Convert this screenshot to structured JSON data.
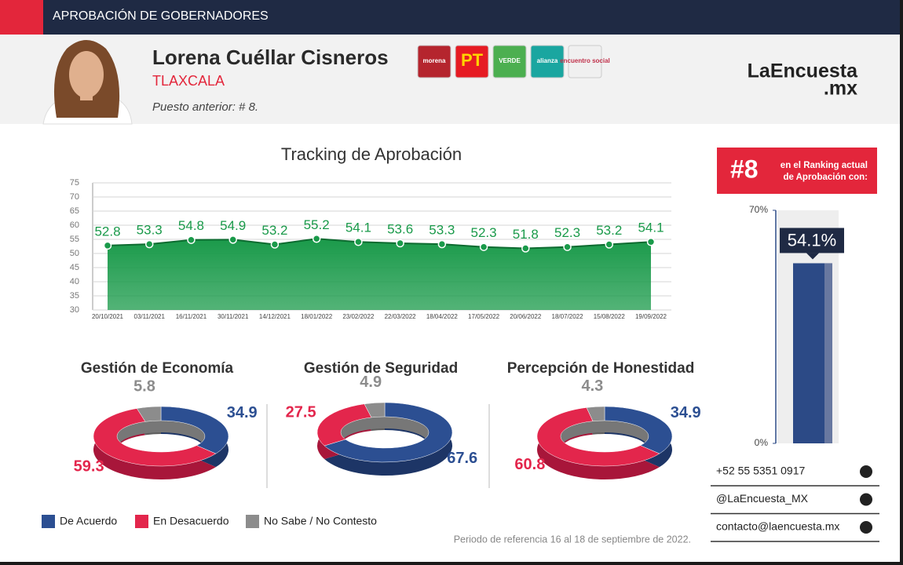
{
  "header": {
    "section_title": "APROBACIÓN DE GOBERNADORES",
    "name": "Lorena Cuéllar Cisneros",
    "state": "TLAXCALA",
    "previous": "Puesto anterior: # 8.",
    "parties": [
      "morena",
      "PT",
      "VERDE",
      "alianza",
      "encuentro social"
    ],
    "brand": "LaEncuesta",
    "brand_suffix": ".mx"
  },
  "chart_data": [
    {
      "type": "line",
      "title": "Tracking de Aprobación",
      "fill": true,
      "color": "#1a9a4a",
      "categories": [
        "20/10/2021",
        "03/11/2021",
        "16/11/2021",
        "30/11/2021",
        "14/12/2021",
        "18/01/2022",
        "23/02/2022",
        "22/03/2022",
        "18/04/2022",
        "17/05/2022",
        "20/06/2022",
        "18/07/2022",
        "15/08/2022",
        "19/09/2022"
      ],
      "values": [
        52.8,
        53.3,
        54.8,
        54.9,
        53.2,
        55.2,
        54.1,
        53.6,
        53.3,
        52.3,
        51.8,
        52.3,
        53.2,
        54.1
      ],
      "ylim": [
        30,
        75
      ],
      "yticks": [
        30,
        35,
        40,
        45,
        50,
        55,
        60,
        65,
        70,
        75
      ],
      "grid": true
    },
    {
      "type": "bar",
      "rank": "#8",
      "caption": [
        "en el Ranking actual",
        "de Aprobación con:"
      ],
      "color": "#2c4a86",
      "values": [
        54.1
      ],
      "value_labels": [
        "54.1%"
      ],
      "ylim": [
        0,
        70
      ],
      "yticks": [
        {
          "value": 0,
          "label": "0%"
        },
        {
          "value": 70,
          "label": "70%"
        }
      ]
    },
    {
      "type": "pie",
      "donut": true,
      "categories": [
        "De Acuerdo",
        "En Desacuerdo",
        "No Sabe / No Contesto"
      ],
      "colors": [
        "#2c4f92",
        "#e3264c",
        "#8c8c8c"
      ],
      "series": [
        {
          "name": "Gestión de Economía",
          "values": [
            34.9,
            59.3,
            5.8
          ]
        },
        {
          "name": "Gestión de Seguridad",
          "values": [
            67.6,
            27.5,
            4.9
          ]
        },
        {
          "name": "Percepción de Honestidad",
          "values": [
            34.9,
            60.8,
            4.3
          ]
        }
      ]
    }
  ],
  "contacts": [
    "+52 55 5351 0917",
    "@LaEncuesta_MX",
    "contacto@laencuesta.mx"
  ],
  "footnote": "Periodo de referencia 16 al 18 de septiembre de 2022."
}
